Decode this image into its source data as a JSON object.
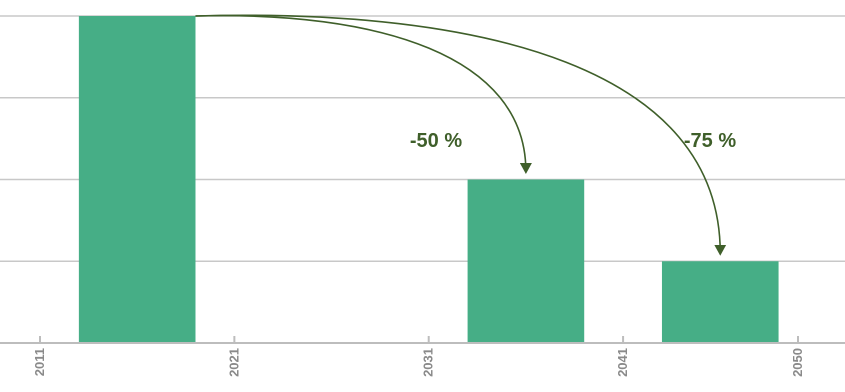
{
  "chart_data": {
    "type": "bar",
    "title": "",
    "xlabel": "",
    "ylabel": "",
    "ylim": [
      0,
      100
    ],
    "x_ticks": [
      "2011",
      "2021",
      "2031",
      "2041",
      "2050"
    ],
    "bars": [
      {
        "start": 2013,
        "end": 2019,
        "value": 100
      },
      {
        "start": 2033,
        "end": 2039,
        "value": 50
      },
      {
        "start": 2043,
        "end": 2049,
        "value": 25
      }
    ],
    "grid": true,
    "annotations": [
      {
        "label": "-50 %",
        "from_bar": 0,
        "to_bar": 1
      },
      {
        "label": "-75 %",
        "from_bar": 0,
        "to_bar": 2
      }
    ],
    "colors": {
      "bar": "#46ae86",
      "grid": "#c8c8c8",
      "axis": "#bdbdbd",
      "tick_text": "#8a8a8a",
      "annotation": "#3f5f2a"
    }
  }
}
